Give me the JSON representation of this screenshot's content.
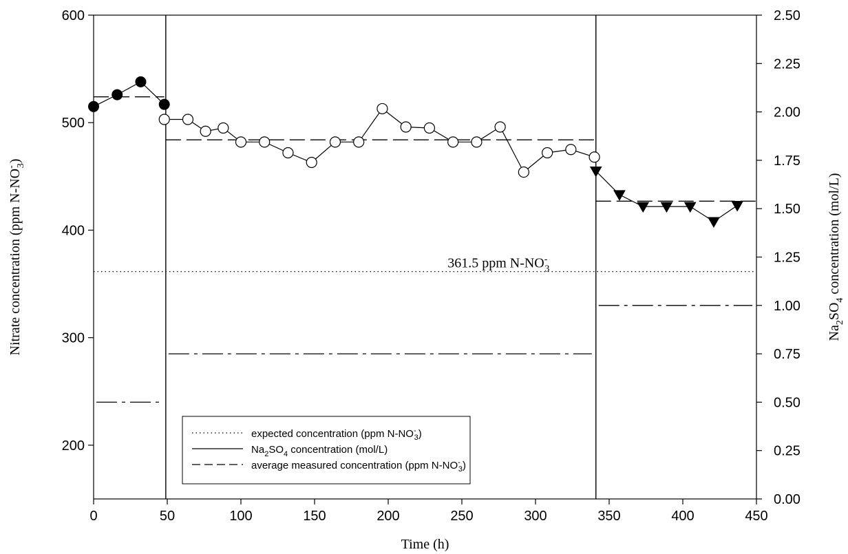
{
  "chart_data": {
    "type": "line",
    "x_axis": {
      "label": "Time (h)",
      "range": [
        0,
        450
      ],
      "ticks": [
        0,
        50,
        100,
        150,
        200,
        250,
        300,
        350,
        400,
        450
      ]
    },
    "y_axis_left": {
      "label": "Nitrate concentration (ppm N-NO3-)",
      "label_parts": {
        "base": "Nitrate concentration (ppm N-NO",
        "sup": "-",
        "sub": "3",
        "tail": ")"
      },
      "range": [
        150,
        600
      ],
      "ticks": [
        200,
        300,
        400,
        500,
        600
      ]
    },
    "y_axis_right": {
      "label": "Na2SO4 concentration (mol/L)",
      "label_parts": {
        "a": "Na",
        "sub1": "2",
        "b": "SO",
        "sub2": "4",
        "c": " concentration (mol/L)"
      },
      "range": [
        0,
        2.5
      ],
      "ticks": [
        "0.00",
        "0.25",
        "0.50",
        "0.75",
        "1.00",
        "1.25",
        "1.50",
        "1.75",
        "2.00",
        "2.25",
        "2.50"
      ]
    },
    "annotation": {
      "text": "361.5 ppm N-NO-3",
      "parts": {
        "base": "361.5 ppm N-NO",
        "sup": "-",
        "sub": "3"
      },
      "x": 230,
      "y": 361.5
    },
    "phase_boundaries": [
      49,
      341
    ],
    "series": [
      {
        "name": "phase 1 nitrate",
        "marker": "filled-circle",
        "x": [
          0,
          16,
          32,
          48
        ],
        "y": [
          515,
          526,
          538,
          517
        ]
      },
      {
        "name": "phase 2 nitrate",
        "marker": "open-circle",
        "x": [
          48,
          64,
          76,
          88,
          100,
          116,
          132,
          148,
          164,
          180,
          196,
          212,
          228,
          244,
          260,
          276,
          292,
          308,
          324,
          340
        ],
        "y": [
          503,
          503,
          492,
          495,
          482,
          482,
          472,
          463,
          482,
          482,
          513,
          496,
          495,
          482,
          482,
          496,
          454,
          472,
          475,
          468
        ]
      },
      {
        "name": "phase 3 nitrate",
        "marker": "filled-triangle-down",
        "x": [
          341,
          357,
          373,
          389,
          405,
          421,
          437
        ],
        "y": [
          455,
          433,
          422,
          422,
          422,
          408,
          423
        ]
      }
    ],
    "expected_concentration": {
      "y": 361.5,
      "x": [
        0,
        450
      ]
    },
    "average_measured": [
      {
        "x": [
          0,
          48
        ],
        "y": 524
      },
      {
        "x": [
          49,
          341
        ],
        "y": 484
      },
      {
        "x": [
          341,
          450
        ],
        "y": 427
      }
    ],
    "na2so4_concentration": [
      {
        "x": [
          0,
          49
        ],
        "y": 0.5
      },
      {
        "x": [
          49,
          341
        ],
        "y": 0.75
      },
      {
        "x": [
          341,
          450
        ],
        "y": 1.0
      }
    ],
    "legend": {
      "position": "bottom-center",
      "entries": [
        {
          "style": "dotted",
          "text": "expected concentration (ppm N-NO-3)",
          "parts": {
            "base": "expected concentration (ppm N-NO",
            "sup": "-",
            "sub": "3",
            "tail": ")"
          }
        },
        {
          "style": "solid",
          "text": "Na2SO4 concentration (mol/L)",
          "parts": {
            "a": "Na",
            "sub1": "2",
            "b": "SO",
            "sub2": "4",
            "c": " concentration (mol/L)"
          }
        },
        {
          "style": "dashed",
          "text": "average measured concentration (ppm N-NO-3)",
          "parts": {
            "base": "average measured concentration (ppm N-NO",
            "sup": "-",
            "sub": "3",
            "tail": ")"
          }
        }
      ]
    }
  }
}
